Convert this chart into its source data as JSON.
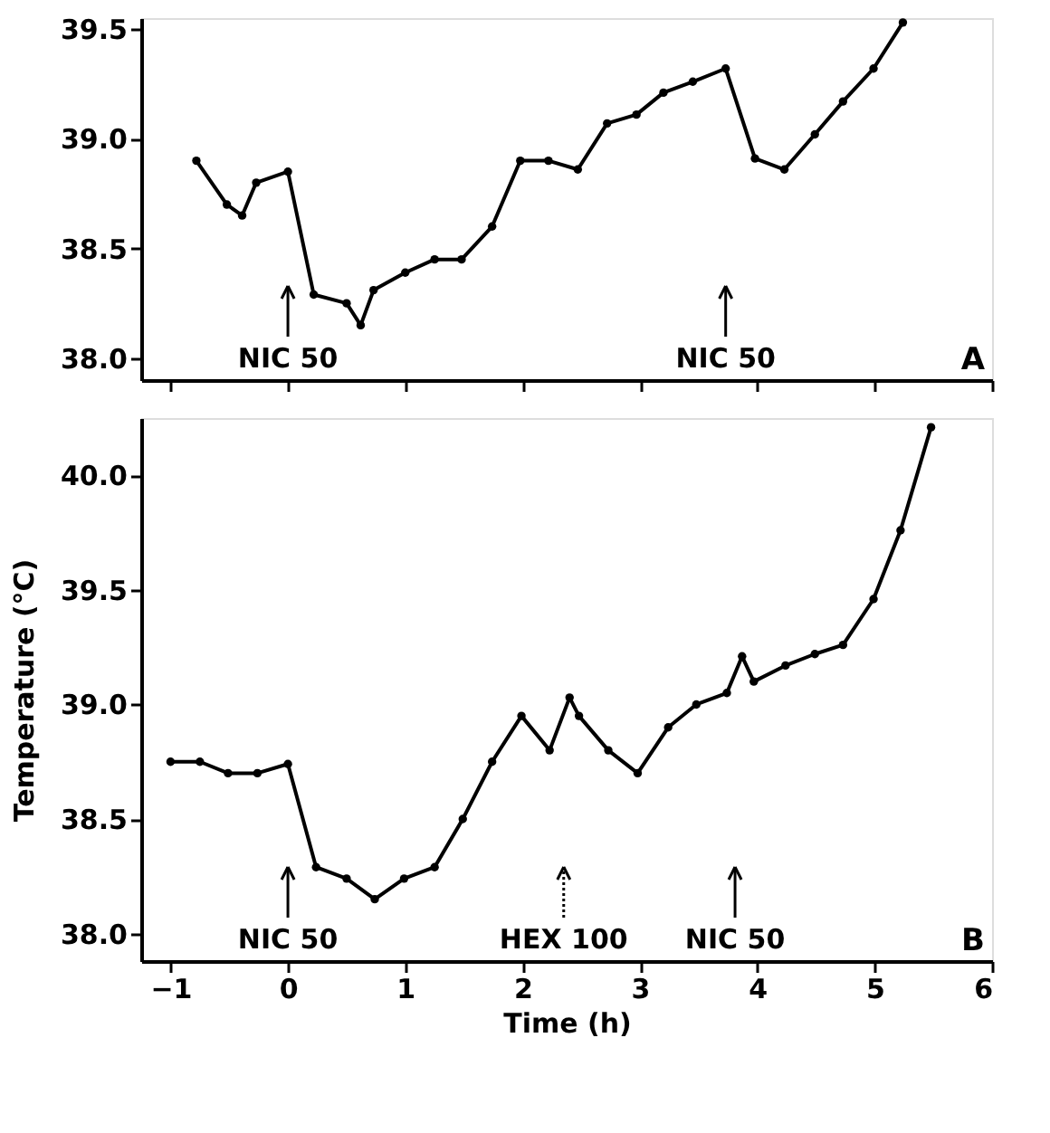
{
  "chart_data": [
    {
      "type": "line",
      "x": [
        -0.78,
        -0.52,
        -0.39,
        -0.27,
        0.0,
        0.22,
        0.5,
        0.62,
        0.73,
        1.0,
        1.25,
        1.48,
        1.74,
        1.98,
        2.22,
        2.47,
        2.72,
        2.97,
        3.2,
        3.45,
        3.73,
        3.98,
        4.23,
        4.49,
        4.73,
        4.99,
        5.24
      ],
      "series": [
        {
          "color": "#000000",
          "values": [
            38.9,
            38.7,
            38.65,
            38.8,
            38.85,
            38.29,
            38.25,
            38.15,
            38.31,
            38.39,
            38.45,
            38.45,
            38.6,
            38.9,
            38.9,
            38.86,
            39.07,
            39.11,
            39.21,
            39.26,
            39.32,
            38.91,
            38.86,
            39.02,
            39.17,
            39.32,
            39.53
          ]
        }
      ],
      "xlim": [
        -1.25,
        6
      ],
      "xticks": [
        -1,
        0,
        1,
        2,
        3,
        4,
        5,
        6
      ],
      "ylim": [
        37.9,
        39.55
      ],
      "yticks": [
        {
          "value": 38.0,
          "label": "38.0"
        },
        {
          "value": 38.5,
          "label": "38.5"
        },
        {
          "value": 39.0,
          "label": "39.0"
        },
        {
          "value": 39.5,
          "label": "39.5"
        }
      ],
      "tick_labels": "y",
      "grid": false,
      "marker": "circle",
      "line_style": "solid",
      "ref_lines": [
        {
          "axis": "x",
          "value": 0.0,
          "label": "NIC 50",
          "line_style": "solid"
        },
        {
          "axis": "x",
          "value": 3.73,
          "label": "NIC 50",
          "line_style": "solid"
        }
      ],
      "annotations": [
        "A"
      ]
    },
    {
      "type": "line",
      "x": [
        -1.0,
        -0.75,
        -0.51,
        -0.26,
        0.0,
        0.24,
        0.5,
        0.74,
        0.99,
        1.25,
        1.49,
        1.74,
        1.99,
        2.23,
        2.4,
        2.48,
        2.73,
        2.98,
        3.24,
        3.48,
        3.74,
        3.87,
        3.97,
        4.24,
        4.49,
        4.73,
        4.99,
        5.22,
        5.48
      ],
      "series": [
        {
          "color": "#000000",
          "values": [
            38.75,
            38.75,
            38.7,
            38.7,
            38.74,
            38.29,
            38.24,
            38.15,
            38.24,
            38.29,
            38.5,
            38.75,
            38.95,
            38.8,
            39.03,
            38.95,
            38.8,
            38.7,
            38.9,
            39.0,
            39.05,
            39.21,
            39.1,
            39.17,
            39.22,
            39.26,
            39.46,
            39.76,
            40.21
          ]
        }
      ],
      "xlim": [
        -1.25,
        6
      ],
      "xticks": [
        -1,
        0,
        1,
        2,
        3,
        4,
        5,
        6
      ],
      "ylim": [
        37.88,
        40.25
      ],
      "yticks": [
        {
          "value": 38.0,
          "label": "38.0"
        },
        {
          "value": 38.5,
          "label": "38.5"
        },
        {
          "value": 39.0,
          "label": "39.0"
        },
        {
          "value": 39.5,
          "label": "39.5"
        },
        {
          "value": 40.0,
          "label": "40.0"
        }
      ],
      "xlabel": "Time (h)",
      "ylabel": "Temperature (°C)",
      "grid": false,
      "marker": "circle",
      "line_style": "solid",
      "ref_lines": [
        {
          "axis": "x",
          "value": 0.0,
          "label": "NIC 50",
          "line_style": "solid"
        },
        {
          "axis": "x",
          "value": 2.35,
          "label": "HEX 100",
          "line_style": "dotted"
        },
        {
          "axis": "x",
          "value": 3.81,
          "label": "NIC 50",
          "line_style": "solid"
        }
      ],
      "annotations": [
        "B"
      ]
    }
  ]
}
